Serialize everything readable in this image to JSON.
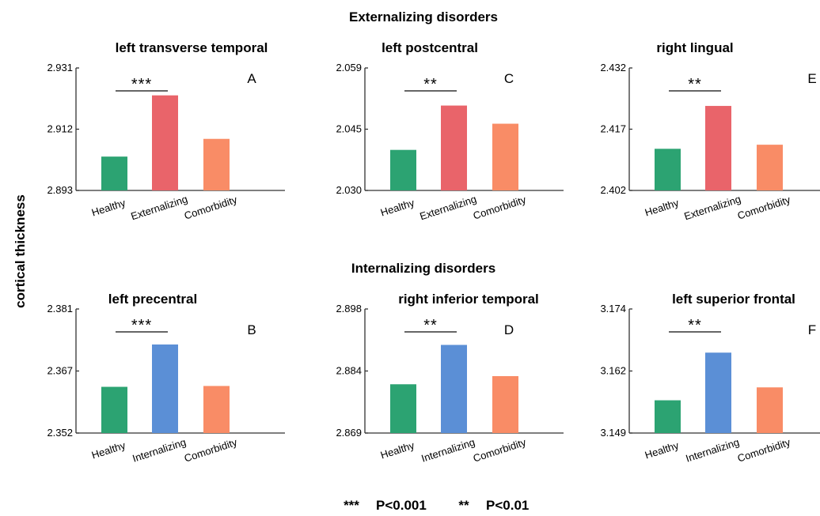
{
  "figure": {
    "section_titles": [
      "Externalizing disorders",
      "Internalizing disorders"
    ],
    "ylabel": "cortical thickness",
    "legend": [
      {
        "symbol": "***",
        "text": "P<0.001"
      },
      {
        "symbol": "**",
        "text": "P<0.01"
      }
    ]
  },
  "colors": {
    "healthy": "#2ca372",
    "externalizing": "#e9646a",
    "internalizing": "#5b8fd6",
    "comorbidity": "#f98c66",
    "axis": "#333333"
  },
  "chart_data": [
    {
      "type": "bar",
      "panel": "A",
      "title": "left transverse temporal",
      "categories": [
        "Healthy",
        "Externalizing",
        "Comorbidity"
      ],
      "values": [
        2.9035,
        2.9225,
        2.909
      ],
      "ylim": [
        2.893,
        2.931
      ],
      "yticks": [
        "2.893",
        "2.912",
        "2.931"
      ],
      "significance": "***"
    },
    {
      "type": "bar",
      "panel": "C",
      "title": "left postcentral",
      "categories": [
        "Healthy",
        "Externalizing",
        "Comorbidity"
      ],
      "values": [
        2.0396,
        2.0501,
        2.0458
      ],
      "ylim": [
        2.03,
        2.059
      ],
      "yticks": [
        "2.030",
        "2.045",
        "2.059"
      ],
      "significance": "**"
    },
    {
      "type": "bar",
      "panel": "E",
      "title": "right lingual",
      "categories": [
        "Healthy",
        "Externalizing",
        "Comorbidity"
      ],
      "values": [
        2.4122,
        2.4227,
        2.4132
      ],
      "ylim": [
        2.402,
        2.432
      ],
      "yticks": [
        "2.402",
        "2.417",
        "2.432"
      ],
      "significance": "**"
    },
    {
      "type": "bar",
      "panel": "B",
      "title": "left precentral",
      "categories": [
        "Healthy",
        "Internalizing",
        "Comorbidity"
      ],
      "values": [
        2.3628,
        2.3727,
        2.363
      ],
      "ylim": [
        2.352,
        2.381
      ],
      "yticks": [
        "2.352",
        "2.367",
        "2.381"
      ],
      "significance": "***"
    },
    {
      "type": "bar",
      "panel": "D",
      "title": "right inferior temporal",
      "categories": [
        "Healthy",
        "Internalizing",
        "Comorbidity"
      ],
      "values": [
        2.8804,
        2.8896,
        2.8823
      ],
      "ylim": [
        2.869,
        2.898
      ],
      "yticks": [
        "2.869",
        "2.884",
        "2.898"
      ],
      "significance": "**"
    },
    {
      "type": "bar",
      "panel": "F",
      "title": "left superior frontal",
      "categories": [
        "Healthy",
        "Internalizing",
        "Comorbidity"
      ],
      "values": [
        3.1556,
        3.1652,
        3.1582
      ],
      "ylim": [
        3.149,
        3.174
      ],
      "yticks": [
        "3.149",
        "3.162",
        "3.174"
      ],
      "significance": "**"
    }
  ]
}
